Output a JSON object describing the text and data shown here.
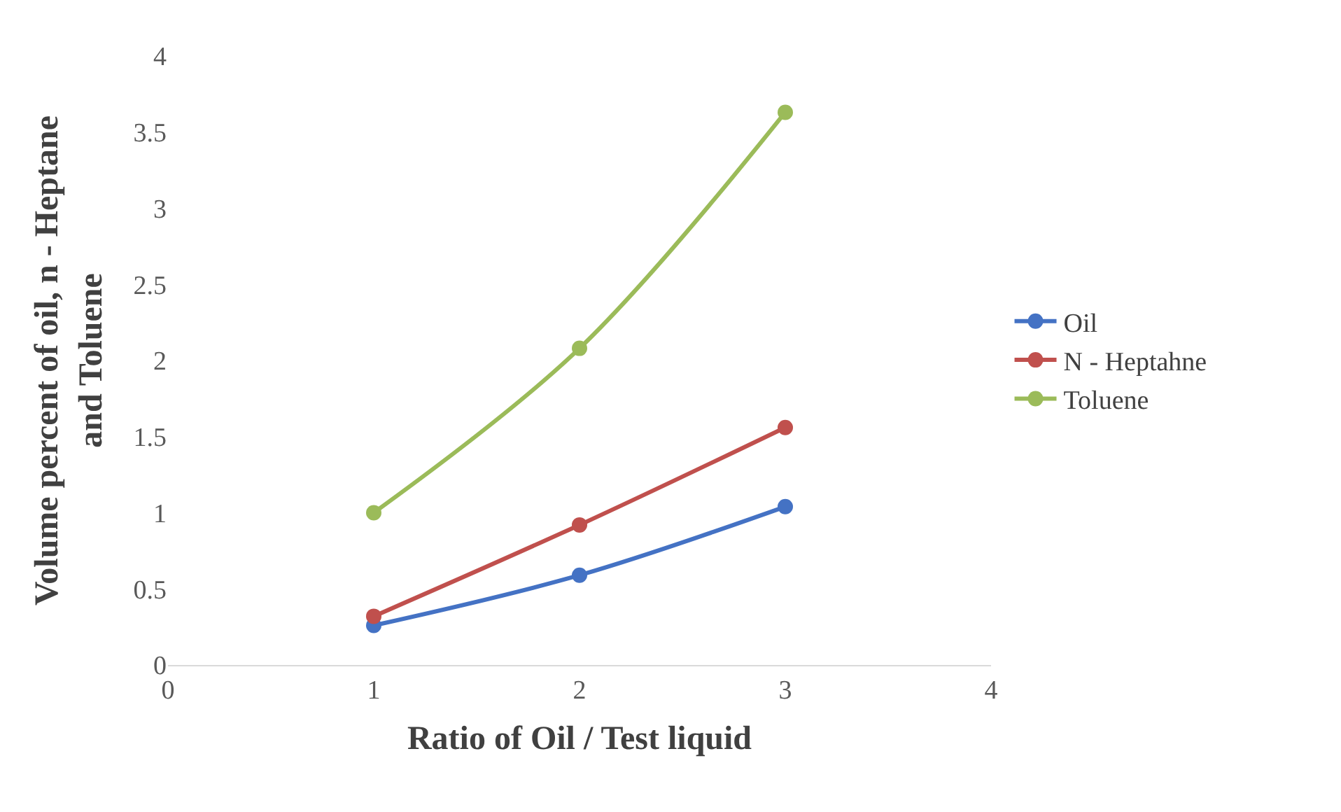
{
  "chart_data": {
    "type": "line",
    "xlabel": "Ratio of Oil / Test liquid",
    "ylabel": "Volume percent of oil, n - Heptane and Toluene",
    "x": [
      1,
      2,
      3
    ],
    "series": [
      {
        "name": "Oil",
        "color": "#4472c4",
        "values": [
          0.26,
          0.59,
          1.04
        ]
      },
      {
        "name": "N - Heptahne",
        "color": "#c0504d",
        "values": [
          0.32,
          0.92,
          1.56
        ]
      },
      {
        "name": "Toluene",
        "color": "#9bbb59",
        "values": [
          1.0,
          2.08,
          3.63
        ]
      }
    ],
    "xlim": [
      0,
      4
    ],
    "xticks": [
      0,
      1,
      2,
      3,
      4
    ],
    "ylim": [
      0,
      4
    ],
    "yticks": [
      0,
      0.5,
      1,
      1.5,
      2,
      2.5,
      3,
      3.5,
      4
    ],
    "legend": "right",
    "marker": "circle",
    "line_style": "solid"
  }
}
